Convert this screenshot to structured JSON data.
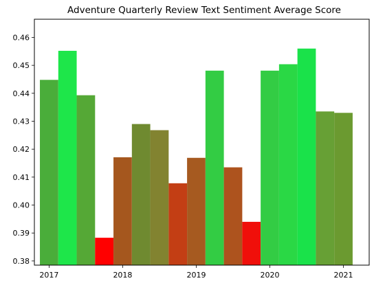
{
  "chart_data": {
    "type": "bar",
    "title": "Adventure Quarterly Review Text Sentiment Average Score",
    "xlabel": "",
    "ylabel": "",
    "xlim": [
      2016.8,
      2021.35
    ],
    "ylim": [
      0.3785,
      0.4665
    ],
    "x_ticks": [
      2017,
      2018,
      2019,
      2020,
      2021
    ],
    "y_ticks": [
      0.38,
      0.39,
      0.4,
      0.41,
      0.42,
      0.43,
      0.44,
      0.45,
      0.46
    ],
    "x_tick_labels": [
      "2017",
      "2018",
      "2019",
      "2020",
      "2021"
    ],
    "y_tick_labels": [
      "0.38",
      "0.39",
      "0.40",
      "0.41",
      "0.42",
      "0.43",
      "0.44",
      "0.45",
      "0.46"
    ],
    "bar_width": 0.25,
    "bars": [
      {
        "x": 2017.0,
        "value": 0.4448,
        "color": "#4aad3a"
      },
      {
        "x": 2017.25,
        "value": 0.4552,
        "color": "#1ee64a"
      },
      {
        "x": 2017.5,
        "value": 0.4393,
        "color": "#55a836"
      },
      {
        "x": 2017.75,
        "value": 0.3883,
        "color": "#ff0000"
      },
      {
        "x": 2018.0,
        "value": 0.4171,
        "color": "#a5571e"
      },
      {
        "x": 2018.25,
        "value": 0.429,
        "color": "#6f8a30"
      },
      {
        "x": 2018.5,
        "value": 0.4268,
        "color": "#828330"
      },
      {
        "x": 2018.75,
        "value": 0.4078,
        "color": "#c33e14"
      },
      {
        "x": 2019.0,
        "value": 0.4169,
        "color": "#a65a20"
      },
      {
        "x": 2019.25,
        "value": 0.4481,
        "color": "#33cc44"
      },
      {
        "x": 2019.5,
        "value": 0.4135,
        "color": "#ad531e"
      },
      {
        "x": 2019.75,
        "value": 0.394,
        "color": "#f00f0a"
      },
      {
        "x": 2020.0,
        "value": 0.4481,
        "color": "#33cc44"
      },
      {
        "x": 2020.25,
        "value": 0.4504,
        "color": "#2ad845"
      },
      {
        "x": 2020.5,
        "value": 0.456,
        "color": "#1ae24a"
      },
      {
        "x": 2020.75,
        "value": 0.4335,
        "color": "#67a035"
      },
      {
        "x": 2021.0,
        "value": 0.433,
        "color": "#6b9a30"
      }
    ]
  }
}
